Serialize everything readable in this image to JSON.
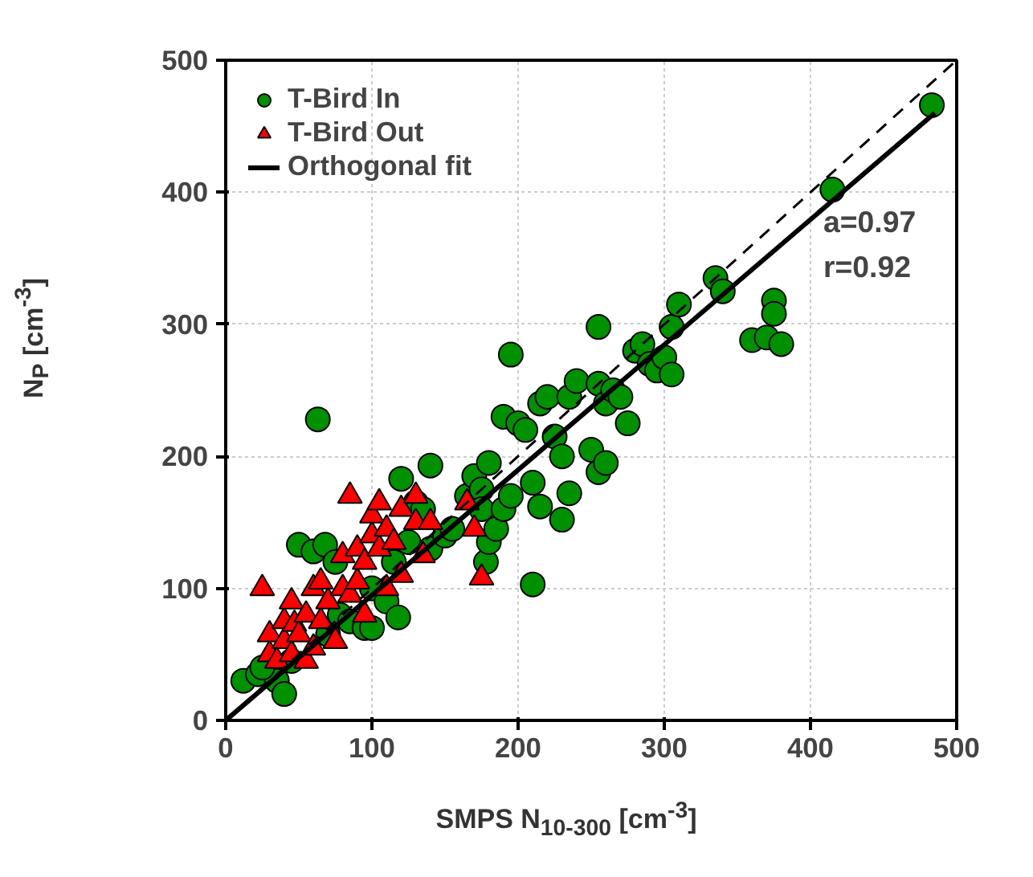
{
  "chart_data": {
    "type": "scatter",
    "xlabel": "SMPS N$_{10-300}$ [cm$^{-3}$]",
    "ylabel": "N$_{P}$ [cm$^{-3}$]",
    "xlim": [
      0,
      500
    ],
    "ylim": [
      0,
      500
    ],
    "xticks": [
      0,
      100,
      200,
      300,
      400,
      500
    ],
    "yticks": [
      0,
      100,
      200,
      300,
      400,
      500
    ],
    "grid": true,
    "legend": "top left",
    "annotations": [
      "a=0.97",
      "r=0.92"
    ],
    "series": [
      {
        "name": "T-Bird In",
        "type": "scatter",
        "marker": "circle",
        "color": "#009100",
        "x": [
          12,
          22,
          35,
          40,
          25,
          45,
          50,
          60,
          63,
          68,
          75,
          70,
          78,
          85,
          95,
          100,
          100,
          110,
          115,
          118,
          120,
          125,
          130,
          135,
          140,
          140,
          150,
          155,
          165,
          170,
          175,
          175,
          178,
          180,
          180,
          185,
          190,
          195,
          190,
          195,
          200,
          205,
          210,
          215,
          210,
          215,
          220,
          225,
          230,
          235,
          230,
          235,
          240,
          250,
          255,
          255,
          255,
          260,
          260,
          265,
          270,
          275,
          280,
          285,
          290,
          295,
          300,
          305,
          305,
          310,
          335,
          340,
          360,
          370,
          375,
          375,
          380,
          415,
          483
        ],
        "values": [
          30,
          35,
          30,
          20,
          40,
          45,
          133,
          128,
          228,
          133,
          120,
          65,
          80,
          75,
          70,
          70,
          100,
          90,
          120,
          78,
          183,
          135,
          165,
          160,
          193,
          130,
          140,
          145,
          170,
          185,
          175,
          160,
          120,
          135,
          195,
          145,
          230,
          277,
          160,
          170,
          225,
          220,
          180,
          240,
          103,
          162,
          245,
          215,
          200,
          245,
          152,
          172,
          257,
          205,
          298,
          255,
          188,
          195,
          240,
          250,
          245,
          225,
          280,
          285,
          270,
          265,
          275,
          298,
          262,
          315,
          335,
          325,
          288,
          290,
          318,
          308,
          285,
          402,
          466
        ]
      },
      {
        "name": "T-Bird Out",
        "type": "scatter",
        "marker": "triangle",
        "color": "#ff0000",
        "x": [
          25,
          30,
          30,
          35,
          40,
          40,
          45,
          45,
          47,
          50,
          55,
          55,
          60,
          60,
          65,
          65,
          70,
          75,
          80,
          80,
          85,
          85,
          90,
          90,
          95,
          95,
          100,
          100,
          105,
          105,
          110,
          110,
          115,
          120,
          120,
          130,
          135,
          130,
          140,
          165,
          170,
          175
        ],
        "values": [
          100,
          50,
          65,
          45,
          60,
          75,
          90,
          50,
          73,
          65,
          80,
          45,
          100,
          55,
          105,
          75,
          90,
          60,
          100,
          125,
          95,
          170,
          130,
          105,
          120,
          80,
          140,
          155,
          165,
          130,
          145,
          100,
          135,
          110,
          160,
          150,
          125,
          170,
          150,
          165,
          145,
          108
        ]
      },
      {
        "name": "Orthogonal fit",
        "type": "line",
        "line_style": "solid",
        "color": "#000000",
        "x": [
          0,
          485
        ],
        "values": [
          0,
          460
        ]
      },
      {
        "type": "line",
        "line_style": "dashed",
        "color": "#000000",
        "x": [
          0,
          500
        ],
        "values": [
          0,
          500
        ]
      }
    ]
  }
}
